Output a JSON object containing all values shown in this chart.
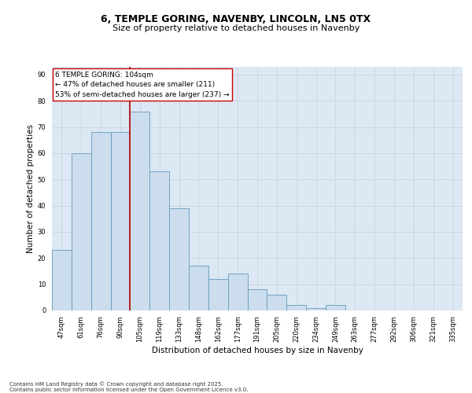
{
  "title1": "6, TEMPLE GORING, NAVENBY, LINCOLN, LN5 0TX",
  "title2": "Size of property relative to detached houses in Navenby",
  "xlabel": "Distribution of detached houses by size in Navenby",
  "ylabel": "Number of detached properties",
  "categories": [
    "47sqm",
    "61sqm",
    "76sqm",
    "90sqm",
    "105sqm",
    "119sqm",
    "133sqm",
    "148sqm",
    "162sqm",
    "177sqm",
    "191sqm",
    "205sqm",
    "220sqm",
    "234sqm",
    "249sqm",
    "263sqm",
    "277sqm",
    "292sqm",
    "306sqm",
    "321sqm",
    "335sqm"
  ],
  "bar_values": [
    23,
    60,
    68,
    68,
    76,
    53,
    39,
    17,
    12,
    14,
    8,
    6,
    2,
    1,
    2,
    0,
    0,
    0,
    0,
    0,
    0
  ],
  "bar_color": "#ccdded",
  "bar_edge_color": "#6699bb",
  "red_line_x": 3.5,
  "annotation_line1": "6 TEMPLE GORING: 104sqm",
  "annotation_line2": "← 47% of detached houses are smaller (211)",
  "annotation_line3": "53% of semi-detached houses are larger (237) →",
  "grid_color": "#c8d4e0",
  "background_color": "#dce8f4",
  "footer": "Contains HM Land Registry data © Crown copyright and database right 2025.\nContains public sector information licensed under the Open Government Licence v3.0.",
  "ylim": [
    0,
    93
  ],
  "yticks": [
    0,
    10,
    20,
    30,
    40,
    50,
    60,
    70,
    80,
    90
  ],
  "title_fontsize": 9,
  "subtitle_fontsize": 8,
  "ylabel_fontsize": 7.5,
  "xlabel_fontsize": 7.5,
  "tick_fontsize": 6,
  "annotation_fontsize": 6.5,
  "footer_fontsize": 5
}
